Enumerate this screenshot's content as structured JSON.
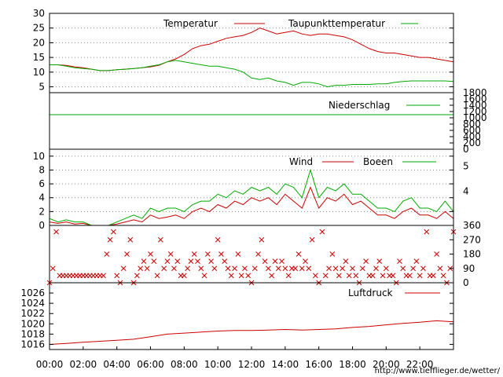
{
  "footer": {
    "url": "http://www.tiefflieger.de/wetter/"
  },
  "colors": {
    "red": "#cc0000",
    "green": "#00aa00",
    "frame": "#000000",
    "grid": "#888888"
  },
  "x_ticks": [
    "00:00",
    "02:00",
    "04:00",
    "06:00",
    "08:00",
    "10:00",
    "12:00",
    "14:00",
    "16:00",
    "18:00",
    "20:00",
    "22:00"
  ],
  "chart_data": [
    {
      "type": "line",
      "yticks": [
        5,
        10,
        15,
        20,
        25,
        30
      ],
      "ylim": [
        3,
        30
      ],
      "grid": true,
      "legend": "top-right",
      "series": [
        {
          "name": "Temperatur",
          "color": "#cc0000",
          "x": [
            0,
            0.5,
            1,
            1.5,
            2,
            2.5,
            3,
            3.5,
            4,
            4.5,
            5,
            5.5,
            6,
            6.5,
            7,
            7.5,
            8,
            8.5,
            9,
            9.5,
            10,
            10.5,
            11,
            11.5,
            12,
            12.5,
            13,
            13.5,
            14,
            14.5,
            15,
            15.5,
            16,
            16.5,
            17,
            17.5,
            18,
            18.5,
            19,
            19.5,
            20,
            20.5,
            21,
            21.5,
            22,
            22.5,
            23,
            23.5,
            24
          ],
          "values": [
            12.5,
            12.5,
            12.3,
            11.8,
            11.5,
            11.0,
            10.5,
            10.5,
            10.8,
            11.0,
            11.2,
            11.5,
            11.8,
            12.3,
            13.5,
            14.5,
            16.0,
            18.0,
            19.0,
            19.5,
            20.5,
            21.5,
            22.0,
            22.5,
            23.5,
            25.0,
            24.0,
            23.0,
            23.5,
            24.0,
            23.0,
            22.5,
            23.0,
            23.0,
            22.5,
            22.0,
            21.0,
            19.5,
            18.0,
            17.0,
            16.5,
            16.5,
            16.0,
            15.5,
            15.0,
            15.0,
            14.5,
            14.0,
            13.5
          ]
        },
        {
          "name": "Taupunkttemperatur",
          "color": "#00aa00",
          "x": [
            0,
            0.5,
            1,
            1.5,
            2,
            2.5,
            3,
            3.5,
            4,
            4.5,
            5,
            5.5,
            6,
            6.5,
            7,
            7.5,
            8,
            8.5,
            9,
            9.5,
            10,
            10.5,
            11,
            11.5,
            12,
            12.5,
            13,
            13.5,
            14,
            14.5,
            15,
            15.5,
            16,
            16.5,
            17,
            17.5,
            18,
            18.5,
            19,
            19.5,
            20,
            20.5,
            21,
            21.5,
            22,
            22.5,
            23,
            23.5,
            24
          ],
          "values": [
            12.5,
            12.5,
            12.0,
            11.5,
            11.2,
            11.0,
            10.5,
            10.5,
            10.8,
            11.0,
            11.2,
            11.5,
            12.0,
            12.5,
            13.5,
            14.0,
            13.5,
            13.0,
            12.5,
            12.0,
            12.0,
            11.5,
            11.0,
            10.0,
            8.0,
            7.5,
            8.0,
            7.0,
            6.5,
            5.5,
            6.5,
            6.5,
            6.0,
            5.0,
            5.5,
            5.5,
            5.8,
            5.8,
            5.8,
            6.0,
            6.0,
            6.5,
            6.8,
            7.0,
            7.0,
            7.0,
            7.0,
            7.0,
            6.8
          ]
        }
      ]
    },
    {
      "type": "line",
      "yticks": [
        0,
        200,
        400,
        600,
        800,
        1000,
        1200,
        1400,
        1600,
        1800
      ],
      "ylim": [
        0,
        1800
      ],
      "legend": "top-right",
      "series": [
        {
          "name": "Niederschlag",
          "color": "#00aa00",
          "x": [
            0,
            24
          ],
          "values": [
            1100,
            1100
          ]
        }
      ]
    },
    {
      "type": "line",
      "yticks": [
        0,
        2,
        4,
        6,
        8,
        10
      ],
      "yticks_right": [
        4,
        5
      ],
      "ylim": [
        0,
        11
      ],
      "grid": true,
      "legend": "top-right",
      "series": [
        {
          "name": "Wind",
          "color": "#cc0000",
          "x": [
            0,
            0.5,
            1,
            1.5,
            2,
            2.5,
            3,
            3.5,
            4,
            4.5,
            5,
            5.5,
            6,
            6.5,
            7,
            7.5,
            8,
            8.5,
            9,
            9.5,
            10,
            10.5,
            11,
            11.5,
            12,
            12.5,
            13,
            13.5,
            14,
            14.5,
            15,
            15.5,
            16,
            16.5,
            17,
            17.5,
            18,
            18.5,
            19,
            19.5,
            20,
            20.5,
            21,
            21.5,
            22,
            22.5,
            23,
            23.5,
            24
          ],
          "values": [
            0.5,
            0.3,
            0.5,
            0.2,
            0.3,
            0,
            0,
            0,
            0.2,
            0.5,
            0.8,
            0.5,
            1.5,
            1.0,
            1.2,
            1.5,
            1.0,
            2.0,
            2.5,
            2.0,
            3.0,
            2.5,
            3.5,
            3.0,
            4.0,
            3.5,
            4.0,
            3.0,
            4.5,
            3.5,
            2.5,
            5.5,
            2.5,
            4.0,
            3.5,
            4.5,
            3.0,
            3.5,
            2.5,
            1.5,
            1.5,
            1.0,
            2.0,
            2.5,
            1.5,
            1.5,
            1.0,
            2.0,
            1.0
          ]
        },
        {
          "name": "Boeen",
          "color": "#00aa00",
          "x": [
            0,
            0.5,
            1,
            1.5,
            2,
            2.5,
            3,
            3.5,
            4,
            4.5,
            5,
            5.5,
            6,
            6.5,
            7,
            7.5,
            8,
            8.5,
            9,
            9.5,
            10,
            10.5,
            11,
            11.5,
            12,
            12.5,
            13,
            13.5,
            14,
            14.5,
            15,
            15.5,
            16,
            16.5,
            17,
            17.5,
            18,
            18.5,
            19,
            19.5,
            20,
            20.5,
            21,
            21.5,
            22,
            22.5,
            23,
            23.5,
            24
          ],
          "values": [
            1.0,
            0.5,
            0.8,
            0.5,
            0.5,
            0,
            0,
            0,
            0.5,
            1.0,
            1.5,
            1.0,
            2.5,
            2.0,
            2.5,
            2.5,
            2.0,
            3.0,
            3.5,
            3.5,
            4.5,
            4.0,
            5.0,
            4.5,
            5.5,
            5.0,
            5.5,
            4.5,
            6.0,
            5.5,
            4.0,
            8.0,
            4.0,
            5.5,
            5.0,
            6.0,
            4.5,
            4.5,
            3.5,
            2.5,
            2.5,
            2.0,
            3.5,
            4.0,
            2.5,
            2.5,
            2.0,
            3.5,
            2.0
          ]
        }
      ]
    },
    {
      "type": "scatter",
      "yticks_right": [
        0,
        90,
        180,
        270,
        360
      ],
      "ylim": [
        0,
        360
      ],
      "marker": "x",
      "series": [
        {
          "color": "#cc0000",
          "x": [
            0,
            0.2,
            0.4,
            0.6,
            0.8,
            1,
            1.2,
            1.4,
            1.6,
            1.8,
            2,
            2.2,
            2.4,
            2.6,
            2.8,
            3,
            3.2,
            3.4,
            3.6,
            3.8,
            4,
            4.2,
            4.4,
            4.6,
            4.8,
            5,
            5.2,
            5.4,
            5.6,
            5.8,
            6,
            6.2,
            6.4,
            6.6,
            6.8,
            7,
            7.2,
            7.4,
            7.6,
            7.8,
            8,
            8.2,
            8.4,
            8.6,
            8.8,
            9,
            9.2,
            9.4,
            9.6,
            9.8,
            10,
            10.2,
            10.4,
            10.6,
            10.8,
            11,
            11.2,
            11.4,
            11.6,
            11.8,
            12,
            12.2,
            12.4,
            12.6,
            12.8,
            13,
            13.2,
            13.4,
            13.6,
            13.8,
            14,
            14.2,
            14.4,
            14.6,
            14.8,
            15,
            15.2,
            15.4,
            15.6,
            15.8,
            16,
            16.2,
            16.4,
            16.6,
            16.8,
            17,
            17.2,
            17.4,
            17.6,
            17.8,
            18,
            18.2,
            18.4,
            18.6,
            18.8,
            19,
            19.2,
            19.4,
            19.6,
            19.8,
            20,
            20.2,
            20.4,
            20.6,
            20.8,
            21,
            21.2,
            21.4,
            21.6,
            21.8,
            22,
            22.2,
            22.4,
            22.6,
            22.8,
            23,
            23.2,
            23.4,
            23.6,
            23.8,
            24
          ],
          "values": [
            0,
            90,
            320,
            45,
            45,
            45,
            45,
            45,
            45,
            45,
            45,
            45,
            45,
            45,
            45,
            45,
            45,
            180,
            270,
            320,
            45,
            0,
            90,
            180,
            270,
            0,
            45,
            90,
            135,
            90,
            180,
            135,
            45,
            270,
            90,
            135,
            180,
            90,
            135,
            45,
            45,
            90,
            135,
            180,
            135,
            90,
            45,
            180,
            135,
            90,
            270,
            180,
            135,
            90,
            45,
            90,
            180,
            45,
            90,
            45,
            0,
            90,
            180,
            270,
            135,
            90,
            45,
            135,
            90,
            135,
            90,
            45,
            90,
            90,
            180,
            90,
            135,
            90,
            270,
            45,
            0,
            320,
            45,
            90,
            180,
            90,
            45,
            90,
            135,
            45,
            90,
            45,
            0,
            90,
            135,
            45,
            45,
            90,
            135,
            45,
            90,
            45,
            45,
            0,
            135,
            90,
            45,
            45,
            90,
            135,
            45,
            90,
            320,
            45,
            45,
            180,
            90,
            45,
            0,
            90,
            320
          ]
        }
      ]
    },
    {
      "type": "line",
      "yticks": [
        1016,
        1018,
        1020,
        1022,
        1024,
        1026
      ],
      "ylim": [
        1015,
        1028
      ],
      "legend": "top-right",
      "series": [
        {
          "name": "Luftdruck",
          "color": "#cc0000",
          "x": [
            0,
            1,
            2,
            3,
            4,
            5,
            6,
            7,
            8,
            9,
            10,
            11,
            12,
            13,
            14,
            15,
            16,
            17,
            18,
            19,
            20,
            21,
            22,
            23,
            24
          ],
          "values": [
            1016.0,
            1016.2,
            1016.4,
            1016.6,
            1016.8,
            1017.0,
            1017.5,
            1018.0,
            1018.2,
            1018.4,
            1018.6,
            1018.7,
            1018.7,
            1018.8,
            1018.9,
            1018.8,
            1018.9,
            1019.0,
            1019.3,
            1019.5,
            1019.8,
            1020.1,
            1020.3,
            1020.6,
            1020.4
          ]
        }
      ]
    }
  ]
}
